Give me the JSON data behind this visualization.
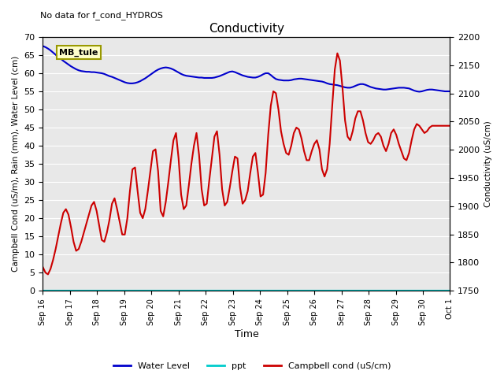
{
  "title": "Conductivity",
  "subtitle": "No data for f_cond_HYDROS",
  "xlabel": "Time",
  "ylabel_left": "Campbell Cond (uS/m), Rain (mm), Water Level (cm)",
  "ylabel_right": "Conductivity (uS/cm)",
  "ylim_left": [
    0,
    70
  ],
  "ylim_right": [
    1750,
    2200
  ],
  "bg_color": "#e8e8e8",
  "annotation_box": "MB_tule",
  "annotation_color": "#ffffcc",
  "annotation_border": "#999900",
  "x_tick_labels": [
    "Sep 16",
    "Sep 17",
    "Sep 18",
    "Sep 19",
    "Sep 20",
    "Sep 21",
    "Sep 22",
    "Sep 23",
    "Sep 24",
    "Sep 25",
    "Sep 26",
    "Sep 27",
    "Sep 28",
    "Sep 29",
    "Sep 30",
    "Oct 1"
  ],
  "water_level": [
    67.5,
    67.2,
    66.8,
    66.3,
    65.7,
    65.1,
    64.5,
    64.0,
    63.4,
    62.9,
    62.4,
    61.9,
    61.5,
    61.1,
    60.8,
    60.6,
    60.5,
    60.4,
    60.4,
    60.3,
    60.3,
    60.2,
    60.1,
    60.0,
    59.8,
    59.5,
    59.2,
    59.0,
    58.7,
    58.4,
    58.1,
    57.8,
    57.5,
    57.3,
    57.2,
    57.2,
    57.3,
    57.5,
    57.8,
    58.2,
    58.6,
    59.1,
    59.6,
    60.1,
    60.6,
    61.0,
    61.3,
    61.5,
    61.6,
    61.5,
    61.3,
    61.0,
    60.6,
    60.2,
    59.8,
    59.5,
    59.3,
    59.2,
    59.1,
    59.0,
    58.9,
    58.8,
    58.8,
    58.7,
    58.7,
    58.7,
    58.7,
    58.8,
    59.0,
    59.2,
    59.5,
    59.8,
    60.1,
    60.4,
    60.5,
    60.3,
    60.0,
    59.7,
    59.4,
    59.2,
    59.0,
    58.9,
    58.8,
    58.8,
    59.0,
    59.3,
    59.7,
    60.0,
    60.0,
    59.5,
    58.9,
    58.4,
    58.2,
    58.1,
    58.0,
    58.0,
    58.0,
    58.1,
    58.3,
    58.4,
    58.5,
    58.5,
    58.4,
    58.3,
    58.2,
    58.1,
    58.0,
    57.9,
    57.8,
    57.7,
    57.5,
    57.2,
    57.0,
    56.9,
    56.8,
    56.7,
    56.5,
    56.3,
    56.1,
    56.0,
    56.0,
    56.2,
    56.5,
    56.8,
    57.0,
    57.0,
    56.8,
    56.5,
    56.2,
    56.0,
    55.8,
    55.7,
    55.6,
    55.5,
    55.5,
    55.6,
    55.7,
    55.8,
    55.9,
    56.0,
    56.0,
    56.0,
    55.9,
    55.8,
    55.5,
    55.2,
    55.0,
    54.9,
    55.0,
    55.2,
    55.4,
    55.5,
    55.5,
    55.4,
    55.3,
    55.2,
    55.1,
    55.0,
    55.0,
    55.0
  ],
  "campbell_cond": [
    6.5,
    5.0,
    4.5,
    6.0,
    8.5,
    11.5,
    15.0,
    18.5,
    21.5,
    22.5,
    21.0,
    17.5,
    13.5,
    11.0,
    11.5,
    13.5,
    16.0,
    18.5,
    21.0,
    23.5,
    24.5,
    22.0,
    18.0,
    14.0,
    13.5,
    16.0,
    19.5,
    24.0,
    25.5,
    22.5,
    19.0,
    15.5,
    15.5,
    20.0,
    27.5,
    33.5,
    34.0,
    27.5,
    21.5,
    20.0,
    22.5,
    27.5,
    33.0,
    38.5,
    39.0,
    33.0,
    22.0,
    20.5,
    24.5,
    30.0,
    36.0,
    41.5,
    43.5,
    36.5,
    26.5,
    22.5,
    23.5,
    29.0,
    35.0,
    40.0,
    43.5,
    37.5,
    28.0,
    23.5,
    24.0,
    30.5,
    36.5,
    42.5,
    44.0,
    37.5,
    28.0,
    23.5,
    24.5,
    28.5,
    33.0,
    37.0,
    36.5,
    28.5,
    24.0,
    25.0,
    27.5,
    32.5,
    37.0,
    38.0,
    32.5,
    26.0,
    26.5,
    32.5,
    43.0,
    51.0,
    55.0,
    54.5,
    50.0,
    44.0,
    40.5,
    38.0,
    37.5,
    40.0,
    43.5,
    45.0,
    44.5,
    42.0,
    38.5,
    36.0,
    36.0,
    38.5,
    40.5,
    41.5,
    39.0,
    33.5,
    31.5,
    33.5,
    40.5,
    51.0,
    61.0,
    65.5,
    63.5,
    56.0,
    47.0,
    42.5,
    41.5,
    44.0,
    47.5,
    49.5,
    49.5,
    47.0,
    43.5,
    41.0,
    40.5,
    41.5,
    43.0,
    43.5,
    42.5,
    40.0,
    38.5,
    40.5,
    43.5,
    44.5,
    43.0,
    40.5,
    38.5,
    36.5,
    36.0,
    38.0,
    41.5,
    44.5,
    46.0,
    45.5,
    44.5,
    43.5,
    44.0,
    45.0,
    45.5,
    45.5,
    45.5,
    45.5,
    45.5,
    45.5,
    45.5,
    45.5
  ],
  "water_color": "#0000cc",
  "ppt_color": "#00cccc",
  "cond_color": "#cc0000",
  "right_dotted_color": "#aaaaaa",
  "grid_color": "white"
}
